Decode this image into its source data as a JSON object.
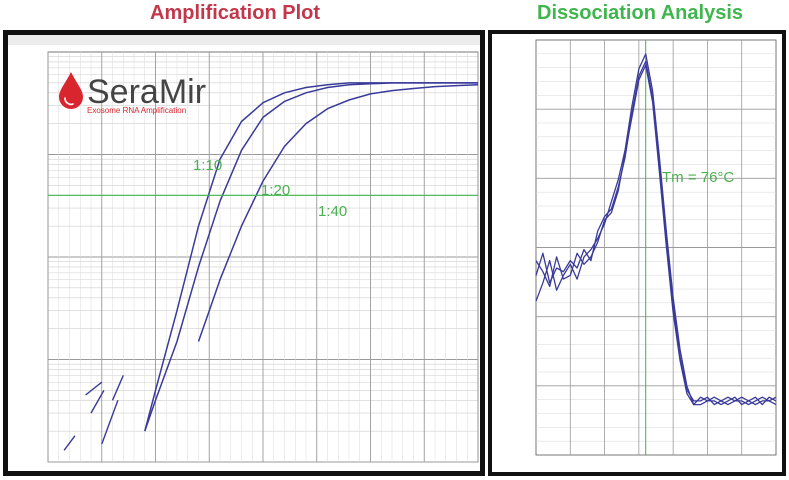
{
  "headings": {
    "amplification": "Amplification Plot",
    "dissociation": "Dissociation Analysis"
  },
  "logo": {
    "name": "SeraMir",
    "tagline": "Exosome RNA Amplification",
    "drop_color": "#d9262e",
    "tagline_color": "#d9262e"
  },
  "colors": {
    "curve": "#3a3a9a",
    "threshold": "#3fb54e",
    "annotation": "#4caf50",
    "amp_heading": "#c2384a",
    "diss_heading": "#3fb54e"
  },
  "chart_data": [
    {
      "type": "line",
      "panel": "amplification",
      "scale": "log-y",
      "grid": true,
      "threshold_y": 0.4,
      "xlim": [
        0,
        40
      ],
      "ylim": [
        0.001,
        10
      ],
      "annotations": [
        "1:10",
        "1:20",
        "1:40"
      ],
      "series": [
        {
          "x": [
            9,
            10,
            12,
            14,
            16,
            18,
            20,
            22,
            24,
            26,
            28,
            30,
            32,
            34,
            36,
            38,
            40
          ],
          "values": [
            0.002,
            0.005,
            0.03,
            0.2,
            0.9,
            2.1,
            3.2,
            4.0,
            4.5,
            4.8,
            5.0,
            5.0,
            5.0,
            5.0,
            5.0,
            5.0,
            5.0
          ]
        },
        {
          "x": [
            9,
            10,
            12,
            14,
            16,
            18,
            20,
            22,
            24,
            26,
            28,
            30,
            32,
            34,
            36,
            38,
            40
          ],
          "values": [
            0.002,
            0.004,
            0.015,
            0.08,
            0.35,
            1.1,
            2.3,
            3.3,
            4.0,
            4.5,
            4.8,
            4.9,
            5.0,
            5.0,
            5.0,
            5.0,
            5.0
          ]
        },
        {
          "x": [
            14,
            15,
            16,
            18,
            20,
            22,
            24,
            26,
            28,
            30,
            32,
            34,
            36,
            38,
            40
          ],
          "values": [
            0.015,
            0.03,
            0.06,
            0.2,
            0.55,
            1.2,
            2.0,
            2.8,
            3.4,
            3.9,
            4.2,
            4.4,
            4.6,
            4.7,
            4.8
          ]
        }
      ],
      "baseline_segments": [
        {
          "x": [
            1.5,
            2.5
          ],
          "values": [
            0.0013,
            0.0018
          ]
        },
        {
          "x": [
            5.0,
            6.5
          ],
          "values": [
            0.0015,
            0.004
          ]
        },
        {
          "x": [
            4.0,
            5.2
          ],
          "values": [
            0.003,
            0.005
          ]
        },
        {
          "x": [
            3.5,
            5.0
          ],
          "values": [
            0.0045,
            0.006
          ]
        },
        {
          "x": [
            6.0,
            7.0
          ],
          "values": [
            0.004,
            0.007
          ]
        }
      ]
    },
    {
      "type": "line",
      "panel": "dissociation",
      "grid": true,
      "tm_label": "Tm = 76°C",
      "tm_x": 76,
      "xlim": [
        60,
        95
      ],
      "ylim": [
        0,
        1
      ],
      "series": [
        {
          "x": [
            60,
            61,
            62,
            63,
            64,
            65,
            66,
            67,
            68,
            69,
            70,
            71,
            72,
            73,
            74,
            75,
            76,
            77,
            78,
            79,
            80,
            81,
            82,
            83,
            84,
            85,
            86,
            87,
            88,
            89,
            90,
            91,
            92,
            93,
            94,
            95
          ],
          "values": [
            0.4,
            0.46,
            0.38,
            0.42,
            0.41,
            0.44,
            0.42,
            0.47,
            0.44,
            0.52,
            0.56,
            0.58,
            0.64,
            0.72,
            0.84,
            0.94,
            0.98,
            0.88,
            0.7,
            0.5,
            0.32,
            0.18,
            0.09,
            0.06,
            0.06,
            0.07,
            0.05,
            0.06,
            0.07,
            0.06,
            0.06,
            0.05,
            0.06,
            0.07,
            0.06,
            0.07
          ]
        },
        {
          "x": [
            60,
            61,
            62,
            63,
            64,
            65,
            66,
            67,
            68,
            69,
            70,
            71,
            72,
            73,
            74,
            75,
            76,
            77,
            78,
            79,
            80,
            81,
            82,
            83,
            84,
            85,
            86,
            87,
            88,
            89,
            90,
            91,
            92,
            93,
            94,
            95
          ],
          "values": [
            0.33,
            0.38,
            0.44,
            0.36,
            0.4,
            0.43,
            0.39,
            0.45,
            0.47,
            0.5,
            0.54,
            0.6,
            0.66,
            0.74,
            0.86,
            0.96,
            1.0,
            0.9,
            0.72,
            0.52,
            0.34,
            0.2,
            0.1,
            0.05,
            0.07,
            0.06,
            0.06,
            0.05,
            0.06,
            0.07,
            0.05,
            0.06,
            0.07,
            0.05,
            0.07,
            0.06
          ]
        },
        {
          "x": [
            60,
            61,
            62,
            63,
            64,
            65,
            66,
            67,
            68,
            69,
            70,
            71,
            72,
            73,
            74,
            75,
            76,
            77,
            78,
            79,
            80,
            81,
            82,
            83,
            84,
            85,
            86,
            87,
            88,
            89,
            90,
            91,
            92,
            93,
            94,
            95
          ],
          "values": [
            0.44,
            0.41,
            0.37,
            0.45,
            0.39,
            0.4,
            0.46,
            0.43,
            0.45,
            0.49,
            0.55,
            0.57,
            0.63,
            0.73,
            0.83,
            0.93,
            0.97,
            0.87,
            0.68,
            0.48,
            0.3,
            0.17,
            0.08,
            0.05,
            0.05,
            0.06,
            0.07,
            0.06,
            0.05,
            0.06,
            0.07,
            0.06,
            0.05,
            0.06,
            0.06,
            0.05
          ]
        }
      ]
    }
  ]
}
